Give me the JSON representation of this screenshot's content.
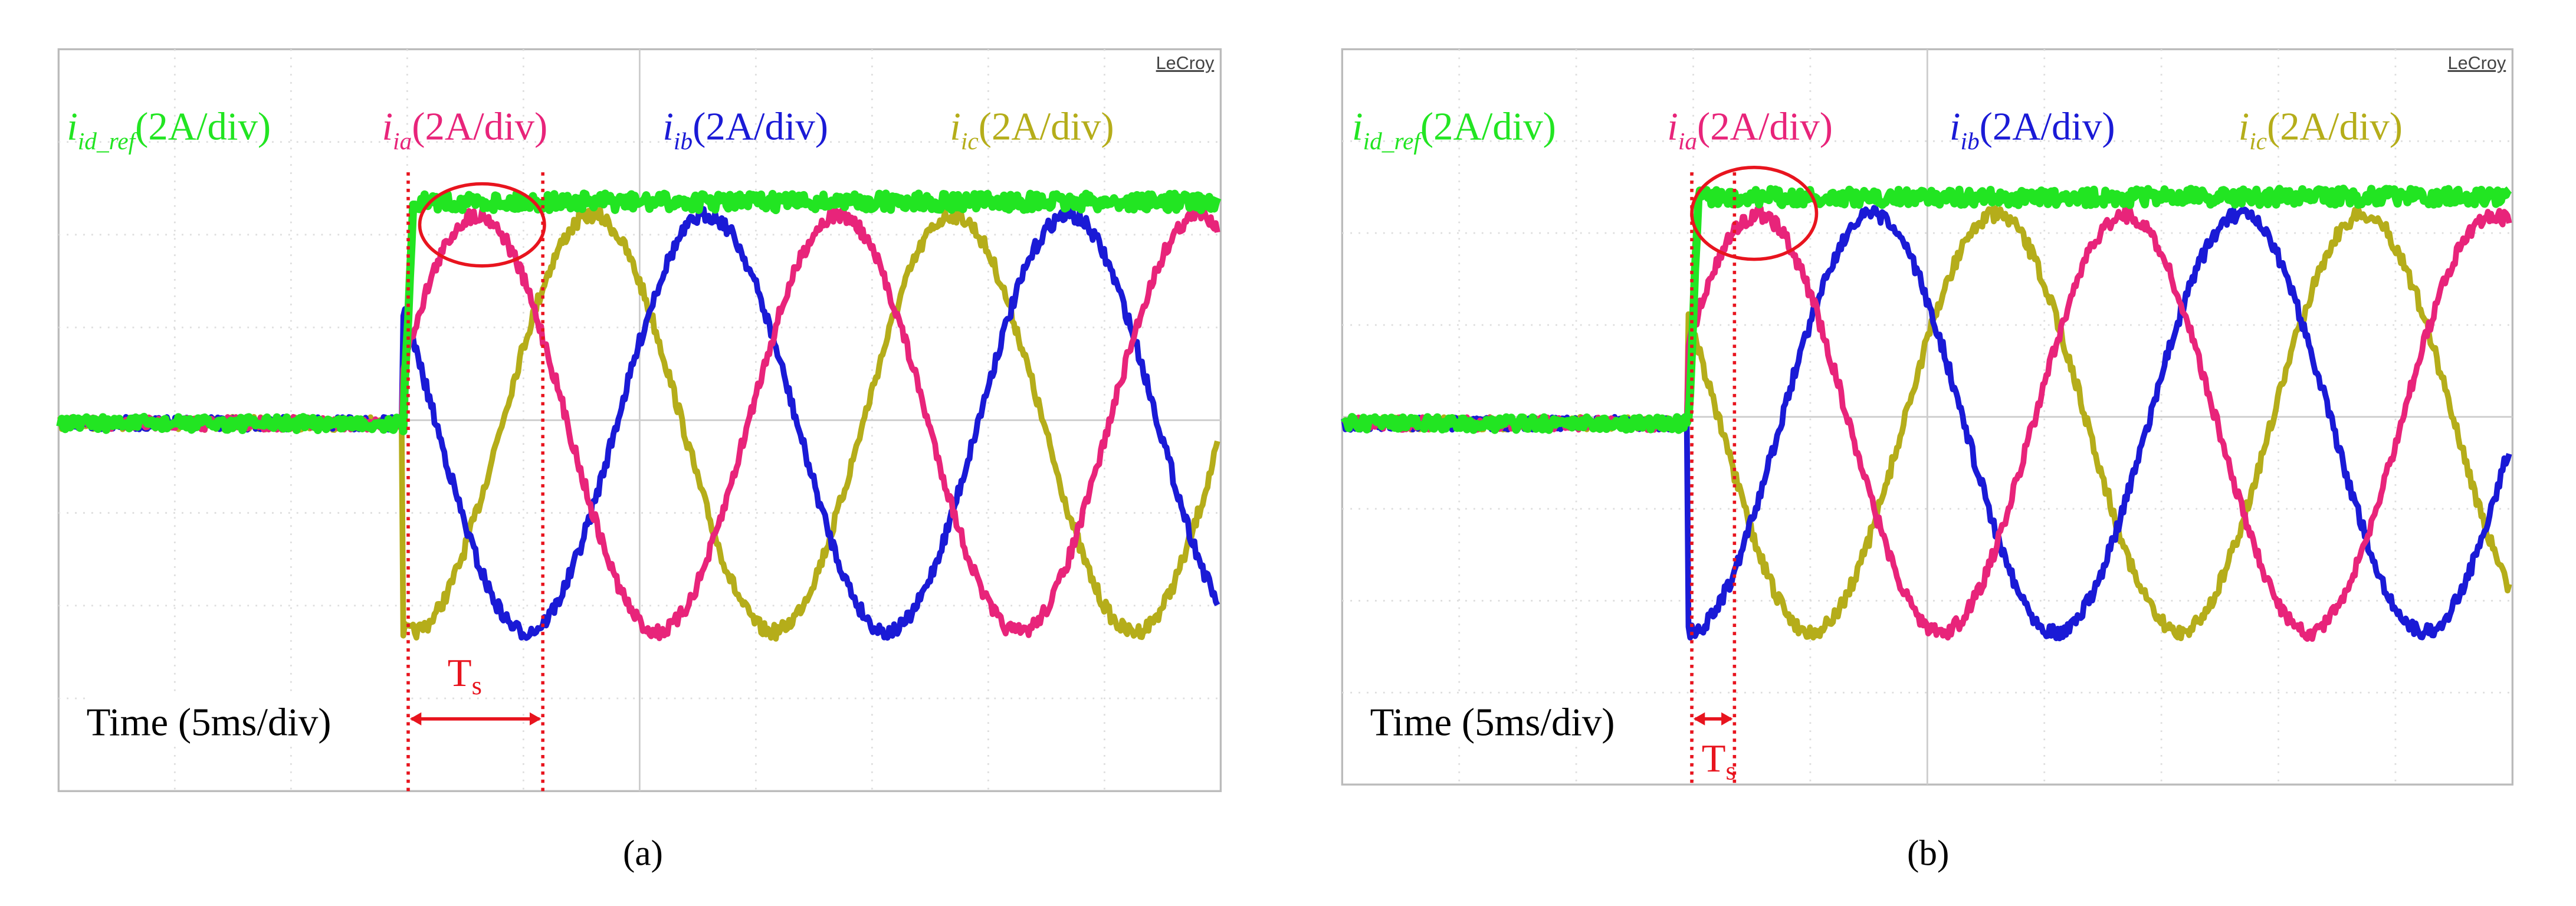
{
  "panels": [
    {
      "caption": "(a)",
      "brand": "LeCroy",
      "traces": [
        {
          "symbol": "i",
          "subscript": "id_ref",
          "scale": "(2A/div)"
        },
        {
          "symbol": "i",
          "subscript": "ia",
          "scale": "(2A/div)"
        },
        {
          "symbol": "i",
          "subscript": "ib",
          "scale": "(2A/div)"
        },
        {
          "symbol": "i",
          "subscript": "ic",
          "scale": "(2A/div)"
        }
      ],
      "time_label": "Time (5ms/div)",
      "interval_label": {
        "symbol": "T",
        "subscript": "s"
      }
    },
    {
      "caption": "(b)",
      "brand": "LeCroy",
      "traces": [
        {
          "symbol": "i",
          "subscript": "id_ref",
          "scale": "(2A/div)"
        },
        {
          "symbol": "i",
          "subscript": "ia",
          "scale": "(2A/div)"
        },
        {
          "symbol": "i",
          "subscript": "ib",
          "scale": "(2A/div)"
        },
        {
          "symbol": "i",
          "subscript": "ic",
          "scale": "(2A/div)"
        }
      ],
      "time_label": "Time (5ms/div)",
      "interval_label": {
        "symbol": "T",
        "subscript": "s"
      }
    }
  ]
}
